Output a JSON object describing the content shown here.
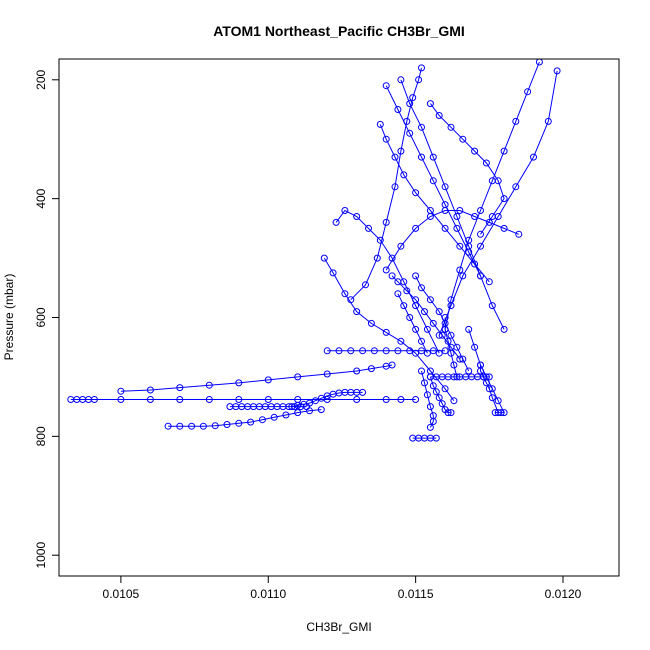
{
  "chart_data": {
    "type": "line",
    "title": "ATOM1 Northeast_Pacific CH3Br_GMI",
    "xlabel": "CH3Br_GMI",
    "ylabel": "Pressure (mbar)",
    "xlim": [
      0.01029,
      0.01219
    ],
    "ylim": [
      1035,
      165
    ],
    "y_inverted": true,
    "xticks": [
      0.0105,
      0.011,
      0.0115,
      0.012
    ],
    "xtick_labels": [
      "0.0105",
      "0.0110",
      "0.0115",
      "0.0120"
    ],
    "yticks": [
      200,
      400,
      600,
      800,
      1000
    ],
    "ytick_labels": [
      "200",
      "400",
      "600",
      "800",
      "1000"
    ],
    "color": "#0000ff",
    "marker": "open-circle",
    "grid": false,
    "legend": "none",
    "series": [
      {
        "x": [
          0.01033,
          0.01035,
          0.01037,
          0.01039,
          0.01041,
          0.0105,
          0.0106,
          0.0107,
          0.0108,
          0.0109,
          0.011,
          0.0111,
          0.0112,
          0.0113,
          0.0114,
          0.01145,
          0.0115
        ],
        "y": [
          738,
          738,
          738,
          738,
          738,
          738,
          738,
          738,
          738,
          738,
          738,
          738,
          738,
          738,
          738,
          738,
          738
        ]
      },
      {
        "x": [
          0.01066,
          0.0107,
          0.01074,
          0.01078,
          0.01082,
          0.01086,
          0.0109,
          0.01094,
          0.01098,
          0.01102,
          0.01106,
          0.0111,
          0.01114,
          0.01118
        ],
        "y": [
          783,
          783,
          783,
          783,
          782,
          780,
          778,
          776,
          772,
          768,
          764,
          760,
          757,
          755
        ]
      },
      {
        "x": [
          0.01087,
          0.01089,
          0.01091,
          0.01093,
          0.01095,
          0.01097,
          0.01099,
          0.01101,
          0.01103,
          0.01105,
          0.01107,
          0.01109,
          0.01111,
          0.01113
        ],
        "y": [
          750,
          750,
          750,
          750,
          750,
          750,
          750,
          750,
          750,
          750,
          750,
          750,
          750,
          750
        ]
      },
      {
        "x": [
          0.0105,
          0.0106,
          0.0107,
          0.0108,
          0.0109,
          0.011,
          0.0111,
          0.0112,
          0.0113,
          0.01135,
          0.0114,
          0.01142
        ],
        "y": [
          724,
          722,
          718,
          714,
          710,
          705,
          700,
          695,
          690,
          686,
          682,
          680
        ]
      },
      {
        "x": [
          0.01108,
          0.0111,
          0.01112,
          0.01114,
          0.01116,
          0.01118,
          0.0112,
          0.01122,
          0.01124,
          0.01126,
          0.01128,
          0.0113,
          0.01132
        ],
        "y": [
          750,
          748,
          746,
          744,
          740,
          736,
          732,
          729,
          727,
          726,
          726,
          726,
          726
        ]
      },
      {
        "x": [
          0.0112,
          0.01124,
          0.01128,
          0.01132,
          0.01136,
          0.0114,
          0.01144,
          0.01148,
          0.01152,
          0.01156,
          0.0116
        ],
        "y": [
          656,
          656,
          656,
          656,
          656,
          656,
          656,
          656,
          656,
          656,
          656
        ]
      },
      {
        "x": [
          0.01155,
          0.01157,
          0.01159,
          0.01161,
          0.01163,
          0.01165,
          0.01167,
          0.01169,
          0.01171,
          0.01173,
          0.01175
        ],
        "y": [
          700,
          700,
          700,
          700,
          700,
          700,
          700,
          700,
          700,
          700,
          700
        ]
      },
      {
        "x": [
          0.01149,
          0.01151,
          0.01153,
          0.01155,
          0.01157
        ],
        "y": [
          803,
          803,
          803,
          803,
          803
        ]
      },
      {
        "x": [
          0.01128,
          0.01133,
          0.01137,
          0.0114,
          0.01143,
          0.01145,
          0.01147,
          0.01149,
          0.01151,
          0.01152
        ],
        "y": [
          570,
          545,
          500,
          440,
          380,
          320,
          270,
          230,
          200,
          180
        ]
      },
      {
        "x": [
          0.01119,
          0.01122,
          0.01126,
          0.0113,
          0.01135,
          0.0114,
          0.01145,
          0.0115,
          0.01155,
          0.0116,
          0.01163
        ],
        "y": [
          500,
          525,
          560,
          590,
          610,
          625,
          640,
          660,
          690,
          720,
          740
        ]
      },
      {
        "x": [
          0.01123,
          0.01126,
          0.0113,
          0.01134,
          0.01138,
          0.01142,
          0.01146,
          0.0115,
          0.01154,
          0.01158
        ],
        "y": [
          440,
          420,
          430,
          450,
          470,
          500,
          540,
          580,
          620,
          660
        ]
      },
      {
        "x": [
          0.01145,
          0.01148,
          0.01152,
          0.01156,
          0.0116,
          0.01164,
          0.01168,
          0.01172,
          0.01176,
          0.0118
        ],
        "y": [
          200,
          240,
          280,
          330,
          380,
          430,
          480,
          530,
          580,
          620
        ]
      },
      {
        "x": [
          0.01192,
          0.01188,
          0.01184,
          0.0118,
          0.01176,
          0.01172,
          0.01168,
          0.01165,
          0.01162,
          0.0116
        ],
        "y": [
          170,
          220,
          270,
          320,
          370,
          420,
          470,
          520,
          570,
          620
        ]
      },
      {
        "x": [
          0.01198,
          0.01195,
          0.0119,
          0.01184,
          0.01178,
          0.01172,
          0.01166,
          0.01162,
          0.01158
        ],
        "y": [
          185,
          270,
          330,
          380,
          430,
          480,
          530,
          580,
          630
        ]
      },
      {
        "x": [
          0.01138,
          0.0114,
          0.01143,
          0.01146,
          0.0115,
          0.01155,
          0.0116,
          0.01165,
          0.0117,
          0.01175
        ],
        "y": [
          275,
          300,
          330,
          360,
          390,
          420,
          450,
          480,
          510,
          540
        ]
      },
      {
        "x": [
          0.0114,
          0.01144,
          0.01148,
          0.01152,
          0.01156,
          0.0116,
          0.01164,
          0.01168,
          0.01172
        ],
        "y": [
          210,
          250,
          290,
          330,
          370,
          410,
          450,
          490,
          530
        ]
      },
      {
        "x": [
          0.01172,
          0.01176,
          0.0118,
          0.01178,
          0.01174,
          0.0117,
          0.01166,
          0.01162,
          0.01158,
          0.01155
        ],
        "y": [
          460,
          430,
          400,
          370,
          340,
          320,
          300,
          280,
          260,
          240
        ]
      },
      {
        "x": [
          0.01185,
          0.0118,
          0.01175,
          0.0117,
          0.01165,
          0.0116,
          0.01155,
          0.0115,
          0.01145,
          0.0114
        ],
        "y": [
          460,
          450,
          440,
          430,
          420,
          420,
          430,
          450,
          480,
          520
        ]
      },
      {
        "x": [
          0.01142,
          0.01144,
          0.01147,
          0.0115,
          0.01153,
          0.01156,
          0.01159,
          0.01162,
          0.01165
        ],
        "y": [
          530,
          540,
          555,
          570,
          590,
          610,
          630,
          650,
          670
        ]
      },
      {
        "x": [
          0.0115,
          0.01152,
          0.01155,
          0.01158,
          0.0116,
          0.01162,
          0.01164,
          0.01166,
          0.01168
        ],
        "y": [
          530,
          550,
          570,
          590,
          610,
          630,
          650,
          670,
          690
        ]
      },
      {
        "x": [
          0.01168,
          0.0117,
          0.01172,
          0.01174,
          0.01176,
          0.01178,
          0.0118,
          0.01179,
          0.01177
        ],
        "y": [
          620,
          650,
          680,
          700,
          720,
          740,
          760,
          760,
          760
        ]
      },
      {
        "x": [
          0.01155,
          0.01156,
          0.01157,
          0.01158,
          0.01159,
          0.0116,
          0.01161,
          0.01162
        ],
        "y": [
          700,
          715,
          725,
          735,
          745,
          755,
          760,
          760
        ]
      },
      {
        "x": [
          0.01172,
          0.01172,
          0.01173,
          0.01174,
          0.01175,
          0.01176,
          0.01178
        ],
        "y": [
          680,
          690,
          700,
          710,
          720,
          735,
          760
        ]
      },
      {
        "x": [
          0.01152,
          0.01153,
          0.01154,
          0.01155,
          0.01156,
          0.01156,
          0.01155
        ],
        "y": [
          690,
          710,
          730,
          750,
          765,
          775,
          785
        ]
      },
      {
        "x": [
          0.01144,
          0.01146,
          0.01148,
          0.0115,
          0.01152,
          0.01154
        ],
        "y": [
          560,
          580,
          600,
          620,
          640,
          660
        ]
      },
      {
        "x": [
          0.0116,
          0.0116,
          0.01161,
          0.01162,
          0.01163,
          0.01164
        ],
        "y": [
          600,
          620,
          640,
          660,
          680,
          700
        ]
      }
    ]
  }
}
